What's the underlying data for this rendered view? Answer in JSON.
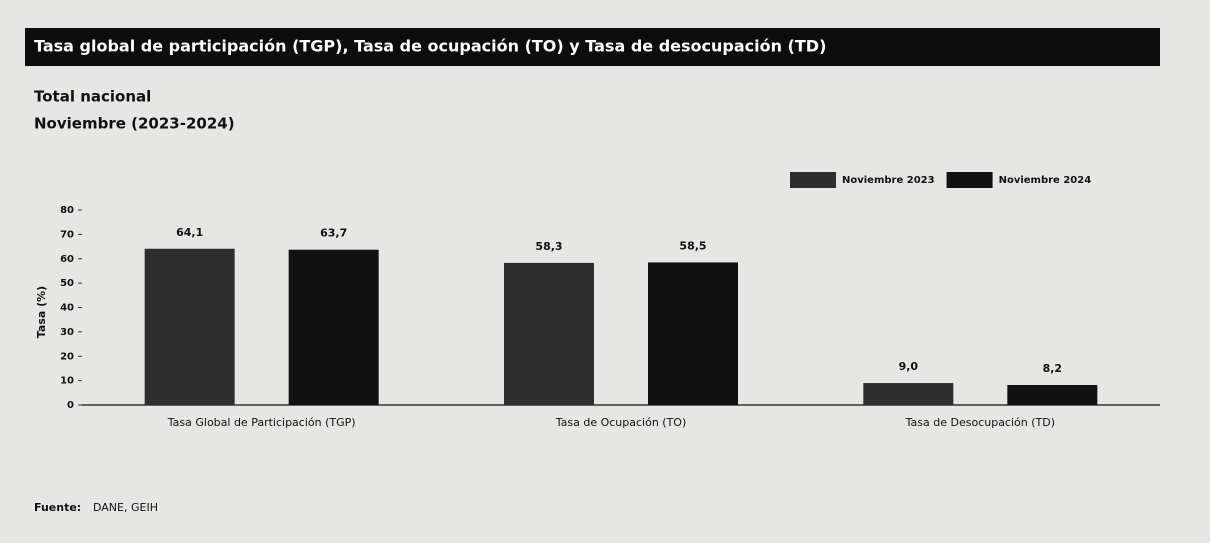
{
  "chart_data": {
    "type": "bar",
    "title": "Tasa global de participación (TGP), Tasa de ocupación (TO) y Tasa de desocupación (TD)",
    "subtitle": [
      "Total nacional",
      "Noviembre (2023-2024)"
    ],
    "y_label": "Tasa (%)",
    "categories": [
      "Tasa Global de Participación (TGP)",
      "Tasa de Ocupación (TO)",
      "Tasa de Desocupación (TD)"
    ],
    "series": [
      {
        "name": "Noviembre 2023",
        "color": "#2e2e2e",
        "values": [
          64.1,
          58.3,
          9.0
        ],
        "value_labels": [
          "64,1",
          "58,3",
          "9,0"
        ]
      },
      {
        "name": "Noviembre 2024",
        "color": "#111111",
        "values": [
          63.7,
          58.5,
          8.2
        ],
        "value_labels": [
          "63,7",
          "58,5",
          "8,2"
        ]
      }
    ],
    "ylim": [
      0,
      80
    ],
    "yticks": [
      0,
      10,
      20,
      30,
      40,
      50,
      60,
      70,
      80
    ],
    "legend": "top-right",
    "source": {
      "label": "Fuente:",
      "text": "DANE, GEIH"
    }
  }
}
